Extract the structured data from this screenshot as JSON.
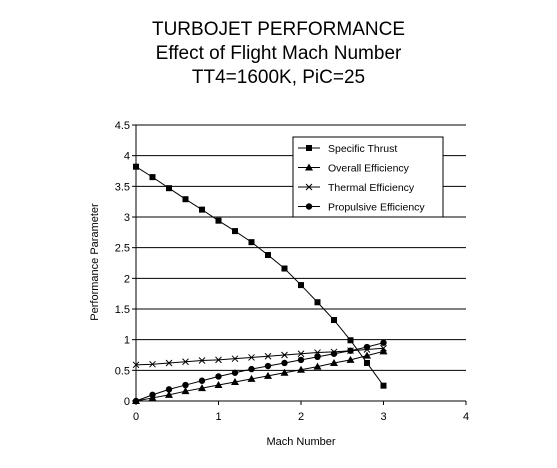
{
  "chart_data": {
    "type": "line",
    "title_lines": [
      "TURBOJET PERFORMANCE",
      "Effect of Flight Mach Number",
      "TT4=1600K, PiC=25"
    ],
    "xlabel": "Mach Number",
    "ylabel": "Performance Parameter",
    "xlim": [
      0,
      4
    ],
    "ylim": [
      0,
      4.5
    ],
    "xticks": [
      "0",
      "1",
      "2",
      "3",
      "4"
    ],
    "yticks": [
      "0",
      "0.5",
      "1",
      "1.5",
      "2",
      "2.5",
      "3",
      "3.5",
      "4",
      "4.5"
    ],
    "grid": "horizontal",
    "legend_position": "top-right",
    "x": [
      0,
      0.2,
      0.4,
      0.6,
      0.8,
      1.0,
      1.2,
      1.4,
      1.6,
      1.8,
      2.0,
      2.2,
      2.4,
      2.6,
      2.8,
      3.0
    ],
    "series": [
      {
        "name": "Specific Thrust",
        "marker": "square",
        "values": [
          3.82,
          3.65,
          3.47,
          3.29,
          3.12,
          2.94,
          2.77,
          2.59,
          2.38,
          2.16,
          1.89,
          1.61,
          1.32,
          0.99,
          0.62,
          0.25
        ]
      },
      {
        "name": "Overall Efficiency",
        "marker": "triangle",
        "values": [
          0,
          0.05,
          0.1,
          0.16,
          0.21,
          0.26,
          0.31,
          0.36,
          0.41,
          0.46,
          0.51,
          0.56,
          0.62,
          0.67,
          0.74,
          0.81
        ]
      },
      {
        "name": "Thermal Efficiency",
        "marker": "x",
        "values": [
          0.59,
          0.6,
          0.62,
          0.64,
          0.66,
          0.67,
          0.69,
          0.71,
          0.73,
          0.75,
          0.77,
          0.79,
          0.8,
          0.82,
          0.84,
          0.86
        ]
      },
      {
        "name": "Propulsive Efficiency",
        "marker": "circle",
        "values": [
          0,
          0.1,
          0.19,
          0.26,
          0.33,
          0.4,
          0.46,
          0.52,
          0.57,
          0.62,
          0.67,
          0.72,
          0.77,
          0.82,
          0.88,
          0.95
        ]
      }
    ]
  }
}
